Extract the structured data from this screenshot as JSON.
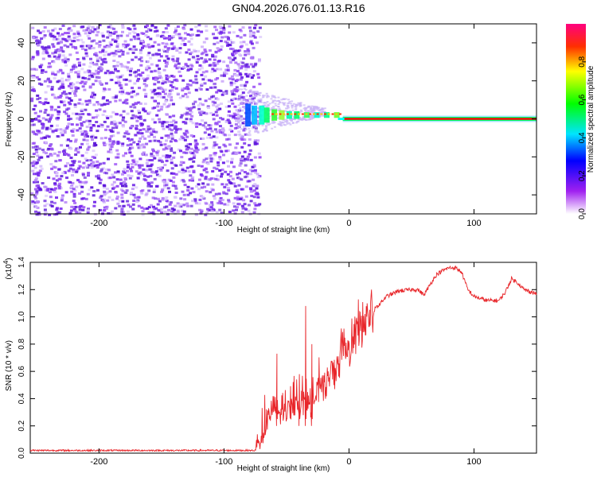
{
  "title": "GN04.2026.076.01.13.R16",
  "chart_data": [
    {
      "type": "heatmap",
      "xlabel": "Height of straight line (km)",
      "ylabel": "Frequency (Hz)",
      "xlim": [
        -255,
        150
      ],
      "ylim": [
        -50,
        50
      ],
      "xticks": [
        -200,
        -100,
        0,
        100
      ],
      "yticks": [
        -40,
        -20,
        0,
        20,
        40
      ],
      "colorbar": {
        "label": "Normalized spectral amplitude",
        "range": [
          0,
          1
        ],
        "ticks": [
          0.0,
          0.2,
          0.4,
          0.6,
          0.8
        ],
        "tick_labels": [
          "0.0",
          "0.2",
          "0.4",
          "0.6",
          "0.8"
        ],
        "colors": [
          "#ffffff",
          "#9b30ff",
          "#0000ff",
          "#00ffff",
          "#00ff00",
          "#ffff00",
          "#ff0000"
        ]
      },
      "noise_region": {
        "x_range": [
          -255,
          -72
        ],
        "amplitude": 0.1
      },
      "transition_region": {
        "x_range": [
          -85,
          -5
        ]
      },
      "signal_line": {
        "frequency": 0,
        "x_range": [
          -5,
          150
        ],
        "amplitude": 1.0
      }
    },
    {
      "type": "line",
      "xlabel": "Height of straight line (km)",
      "ylabel": "SNR (10 * v/v)",
      "y_multiplier_label": "(x10",
      "y_multiplier_exp": "4",
      "xlim": [
        -255,
        150
      ],
      "ylim": [
        0,
        1.4
      ],
      "xticks": [
        -200,
        -100,
        0,
        100
      ],
      "yticks": [
        0.0,
        0.2,
        0.4,
        0.6,
        0.8,
        1.0,
        1.2,
        1.4
      ],
      "ytick_labels": [
        "0.0",
        "0.2",
        "0.4",
        "0.6",
        "0.8",
        "1.0",
        "1.2",
        "1.4"
      ],
      "color": "#e8262a",
      "series": [
        {
          "x": [
            -255,
            -200,
            -150,
            -100,
            -75,
            -70,
            -65,
            -60,
            -55,
            -50,
            -45,
            -40,
            -35,
            -30,
            -25,
            -20,
            -15,
            -10,
            -5,
            0,
            5,
            10,
            15,
            20,
            25,
            30,
            40,
            50,
            55,
            60,
            65,
            70,
            75,
            80,
            85,
            90,
            95,
            100,
            110,
            120,
            125,
            130,
            135,
            140,
            150
          ],
          "y": [
            0.02,
            0.02,
            0.02,
            0.02,
            0.02,
            0.1,
            0.25,
            0.35,
            0.28,
            0.3,
            0.35,
            0.3,
            0.38,
            0.35,
            0.45,
            0.48,
            0.55,
            0.6,
            0.7,
            0.75,
            0.85,
            0.92,
            1.0,
            1.05,
            1.1,
            1.15,
            1.19,
            1.2,
            1.2,
            1.16,
            1.24,
            1.31,
            1.34,
            1.36,
            1.36,
            1.33,
            1.2,
            1.15,
            1.12,
            1.12,
            1.18,
            1.28,
            1.25,
            1.2,
            1.17
          ]
        }
      ],
      "spikes": [
        {
          "x": -58,
          "y": 0.73
        },
        {
          "x": -40,
          "y": 0.58
        },
        {
          "x": -35,
          "y": 1.08
        },
        {
          "x": -30,
          "y": 0.8
        }
      ]
    }
  ]
}
